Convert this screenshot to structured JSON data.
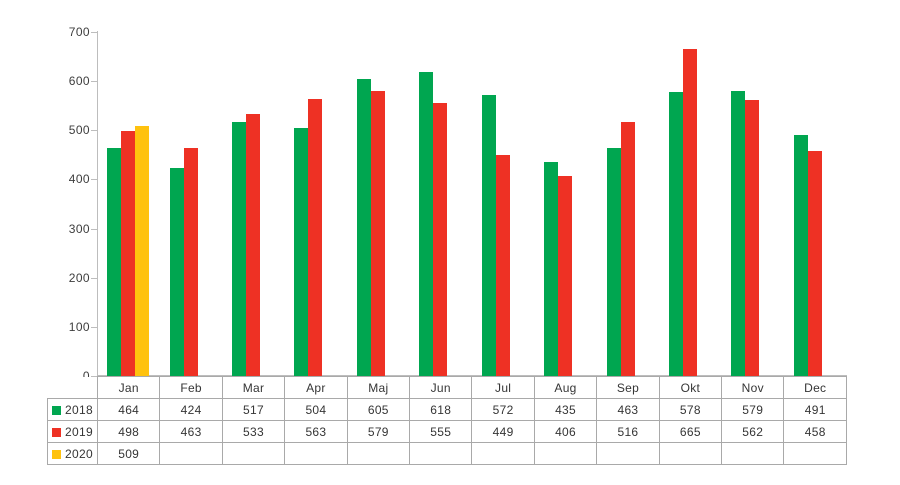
{
  "chart_data": {
    "type": "bar",
    "title": "",
    "xlabel": "",
    "ylabel": "",
    "categories": [
      "Jan",
      "Feb",
      "Mar",
      "Apr",
      "Maj",
      "Jun",
      "Jul",
      "Aug",
      "Sep",
      "Okt",
      "Nov",
      "Dec"
    ],
    "series": [
      {
        "name": "2018",
        "color": "#00A650",
        "values": [
          464,
          424,
          517,
          504,
          605,
          618,
          572,
          435,
          463,
          578,
          579,
          491
        ]
      },
      {
        "name": "2019",
        "color": "#EE3124",
        "values": [
          498,
          463,
          533,
          563,
          579,
          555,
          449,
          406,
          516,
          665,
          562,
          458
        ]
      },
      {
        "name": "2020",
        "color": "#FFC20E",
        "values": [
          509,
          null,
          null,
          null,
          null,
          null,
          null,
          null,
          null,
          null,
          null,
          null
        ]
      }
    ],
    "ylim": [
      0,
      700
    ],
    "yticks": [
      0,
      100,
      200,
      300,
      400,
      500,
      600,
      700
    ],
    "grid": false,
    "legend_position": "table-left",
    "bar_slot_order": [
      "2018",
      "2019",
      "2020"
    ]
  },
  "colors": {
    "axis": "#bdbdbd",
    "table_border": "#a9a9a9",
    "text": "#3d3d3d",
    "background": "#ffffff"
  }
}
